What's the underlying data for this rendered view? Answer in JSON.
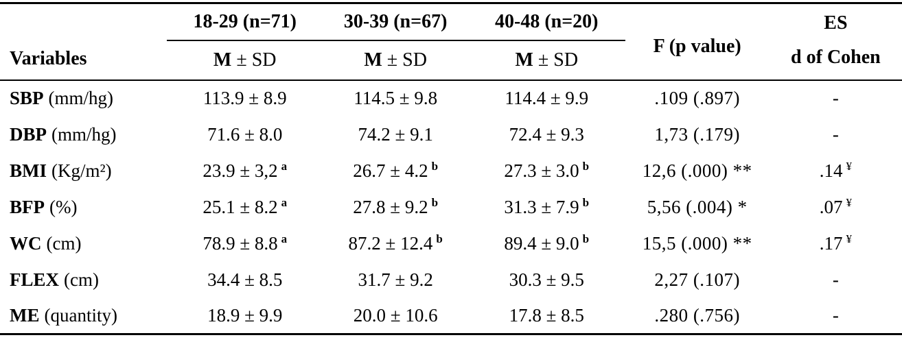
{
  "page": {
    "background": "#ffffff",
    "text_color": "#000000",
    "rule_color": "#000000"
  },
  "table": {
    "header": {
      "variables_label": "Variables",
      "groups": [
        "18-29 (n=71)",
        "30-39 (n=67)",
        "40-48 (n=20)"
      ],
      "m_label": "M",
      "sd_label": "± SD",
      "f_label": "F (p value)",
      "es_line1": "ES",
      "es_line2": "d of Cohen"
    },
    "rows": [
      {
        "abbr": "SBP",
        "unit": "(mm/hg)",
        "v1": "113.9 ± 8.9",
        "s1": "",
        "v2": "114.5 ± 9.8",
        "s2": "",
        "v3": "114.4 ± 9.9",
        "s3": "",
        "f": ".109 (.897)",
        "es": "-",
        "es_sup": ""
      },
      {
        "abbr": "DBP",
        "unit": "(mm/hg)",
        "v1": "71.6 ± 8.0",
        "s1": "",
        "v2": "74.2 ± 9.1",
        "s2": "",
        "v3": "72.4 ± 9.3",
        "s3": "",
        "f": "1,73 (.179)",
        "es": "-",
        "es_sup": ""
      },
      {
        "abbr": "BMI",
        "unit": "(Kg/m²)",
        "v1": "23.9 ± 3,2",
        "s1": "a",
        "v2": "26.7 ± 4.2",
        "s2": "b",
        "v3": "27.3 ± 3.0",
        "s3": "b",
        "f": "12,6 (.000) **",
        "es": ".14",
        "es_sup": "¥"
      },
      {
        "abbr": "BFP",
        "unit": "(%)",
        "v1": "25.1 ± 8.2",
        "s1": "a",
        "v2": "27.8 ± 9.2",
        "s2": "b",
        "v3": "31.3 ± 7.9",
        "s3": "b",
        "f": "5,56 (.004) *",
        "es": ".07",
        "es_sup": "¥"
      },
      {
        "abbr": "WC",
        "unit": "(cm)",
        "v1": "78.9 ± 8.8",
        "s1": "a",
        "v2": "87.2 ± 12.4",
        "s2": "b",
        "v3": "89.4 ± 9.0",
        "s3": "b",
        "f": "15,5 (.000) **",
        "es": ".17",
        "es_sup": "¥"
      },
      {
        "abbr": "FLEX",
        "unit": "(cm)",
        "v1": "34.4 ± 8.5",
        "s1": "",
        "v2": "31.7 ± 9.2",
        "s2": "",
        "v3": "30.3 ± 9.5",
        "s3": "",
        "f": "2,27 (.107)",
        "es": "-",
        "es_sup": ""
      },
      {
        "abbr": "ME",
        "unit": "(quantity)",
        "v1": "18.9 ± 9.9",
        "s1": "",
        "v2": "20.0 ± 10.6",
        "s2": "",
        "v3": "17.8 ± 8.5",
        "s3": "",
        "f": ".280 (.756)",
        "es": "-",
        "es_sup": ""
      }
    ]
  }
}
